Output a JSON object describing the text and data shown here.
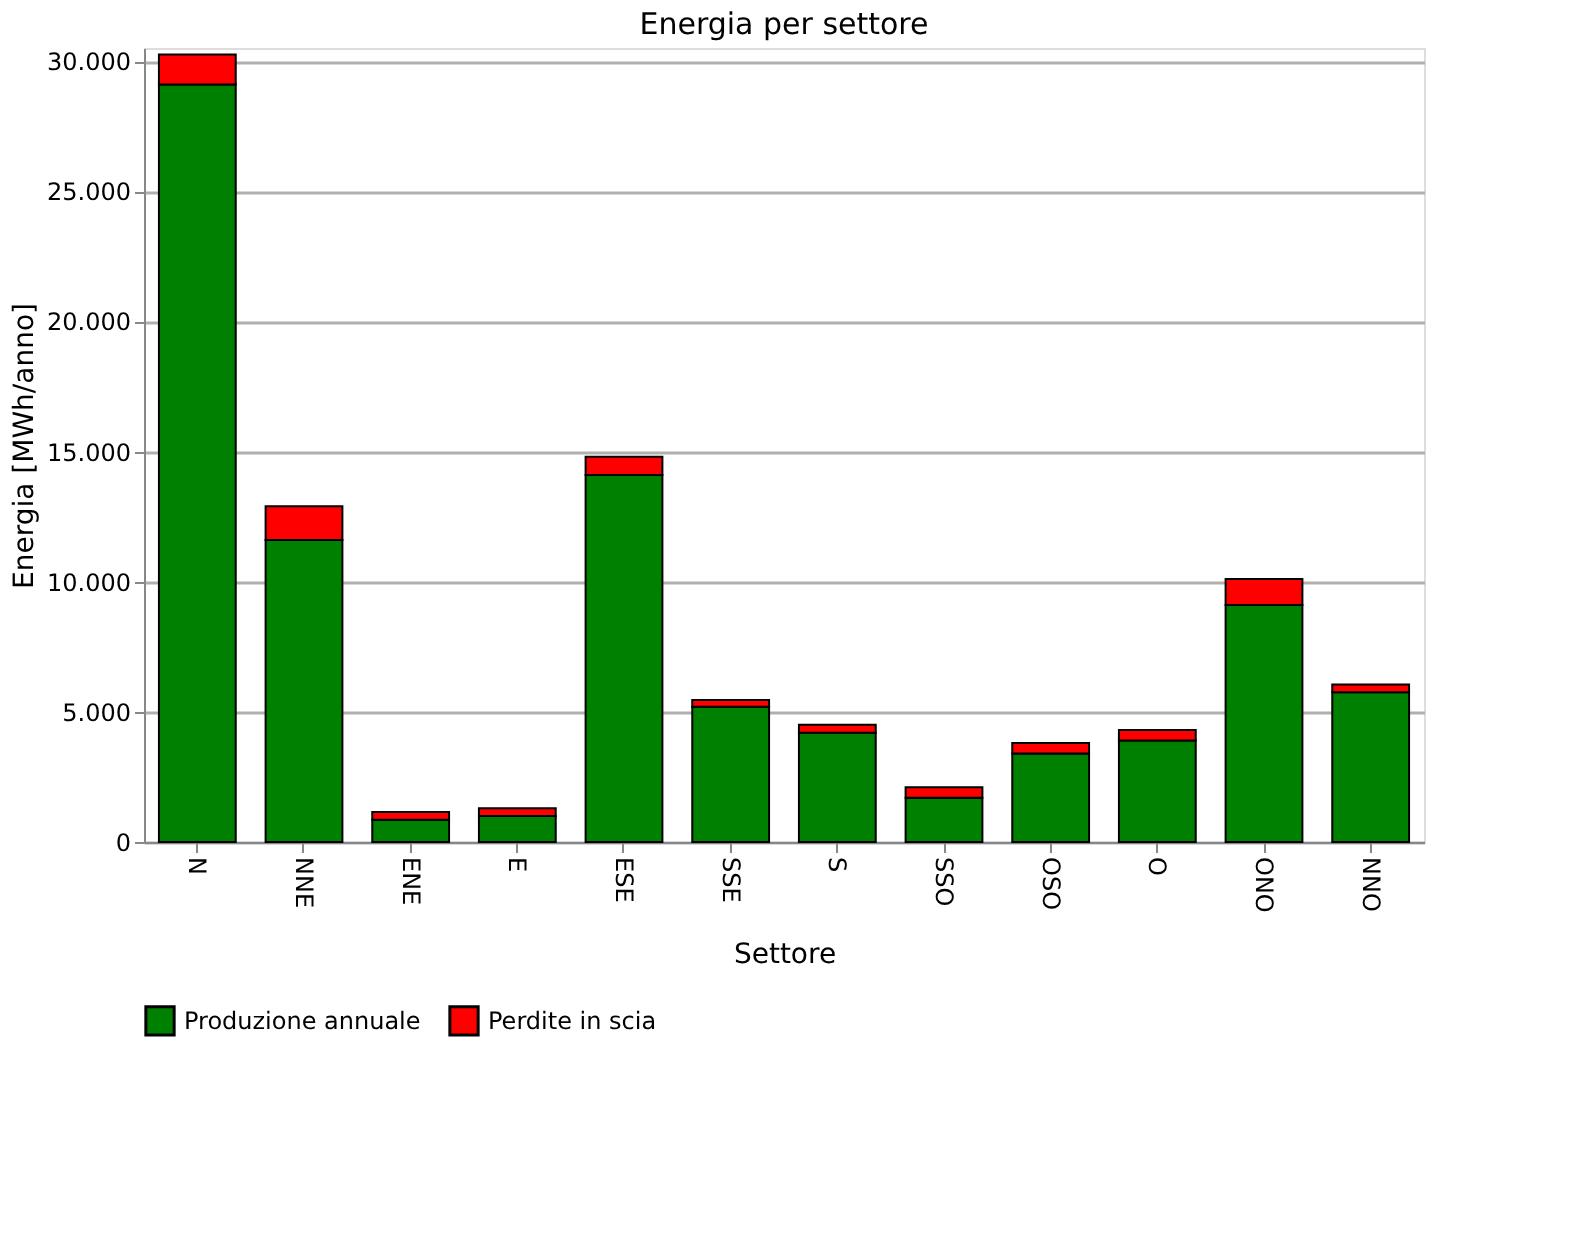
{
  "chart_data": {
    "type": "bar",
    "title": "Energia per settore",
    "xlabel": "Settore",
    "ylabel": "Energia [MWh/anno]",
    "categories": [
      "N",
      "NNE",
      "ENE",
      "E",
      "ESE",
      "SSE",
      "S",
      "SSO",
      "OSO",
      "O",
      "ONO",
      "NNO"
    ],
    "stacked": true,
    "series": [
      {
        "name": "Produzione annuale",
        "color": "#008000",
        "values": [
          29100,
          11600,
          850,
          1000,
          14100,
          5200,
          4200,
          1700,
          3400,
          3900,
          9100,
          5750
        ]
      },
      {
        "name": "Perdite in scia",
        "color": "#ff0000",
        "values": [
          1150,
          1300,
          300,
          300,
          700,
          250,
          300,
          400,
          400,
          400,
          1000,
          300
        ]
      }
    ],
    "ylim": [
      0,
      30500
    ],
    "yticks": [
      {
        "value": 0,
        "label": "0"
      },
      {
        "value": 5000,
        "label": "5.000"
      },
      {
        "value": 10000,
        "label": "10.000"
      },
      {
        "value": 15000,
        "label": "15.000"
      },
      {
        "value": 20000,
        "label": "20.000"
      },
      {
        "value": 25000,
        "label": "25.000"
      },
      {
        "value": 30000,
        "label": "30.000"
      }
    ],
    "grid": "y",
    "legend": "bottom"
  }
}
